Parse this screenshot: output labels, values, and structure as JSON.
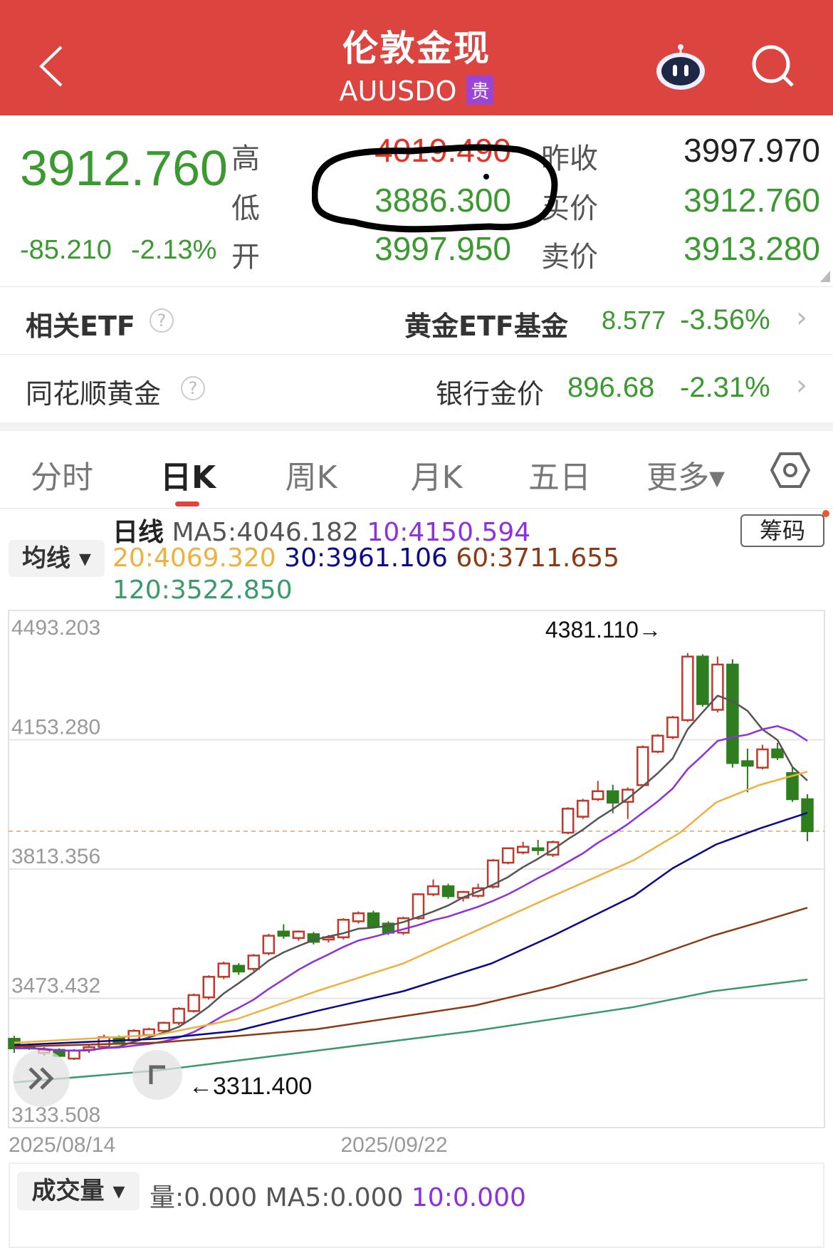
{
  "header": {
    "title": "伦敦金现",
    "symbol": "AUUSDO",
    "badge": "贵",
    "back_icon": "chevron-left-icon",
    "assistant_icon": "robot-icon",
    "search_icon": "search-icon"
  },
  "quote": {
    "price": "3912.760",
    "change": "-85.210",
    "change_pct": "-2.13%",
    "high_label": "高",
    "high": "4019.490",
    "low_label": "低",
    "low": "3886.300",
    "open_label": "开",
    "open": "3997.950",
    "prev_close_label": "昨收",
    "prev_close": "3997.970",
    "bid_label": "买价",
    "bid": "3912.760",
    "ask_label": "卖价",
    "ask": "3913.280"
  },
  "colors": {
    "header": "#dc4440",
    "up": "#e03427",
    "down": "#3a9a30",
    "ma5": "#555555",
    "ma10": "#8e2fe0",
    "ma20": "#f0b040",
    "ma30": "#0a0a8a",
    "ma60": "#8b3a15",
    "ma120": "#3a9a6a"
  },
  "related": [
    {
      "label": "相关ETF",
      "name": "黄金ETF基金",
      "price": "8.577",
      "pct": "-3.56%"
    },
    {
      "label": "同花顺黄金",
      "name": "银行金价",
      "price": "896.68",
      "pct": "-2.31%"
    }
  ],
  "tabs": [
    {
      "label": "分时"
    },
    {
      "label": "日K",
      "active": true
    },
    {
      "label": "周K"
    },
    {
      "label": "月K"
    },
    {
      "label": "五日"
    },
    {
      "label": "更多▾"
    }
  ],
  "settings_icon": "hexagon-gear-icon",
  "legend": {
    "title": "日线",
    "ma5": "MA5:4046.182",
    "ma10": "10:4150.594",
    "ma20": "20:4069.320",
    "ma30": "30:3961.106",
    "ma60": "60:3711.655",
    "ma120": "120:3522.850",
    "ma_button": "均线 ▾",
    "chips_button": "筹码"
  },
  "chart_data": {
    "type": "candlestick",
    "yticks": [
      "4493.203",
      "4153.280",
      "3813.356",
      "3473.432",
      "3133.508"
    ],
    "ylim": [
      3133.508,
      4493.203
    ],
    "x_labels": [
      {
        "candle": 0,
        "label": "2025/08/14"
      },
      {
        "candle": 26,
        "label": "2025/09/22"
      }
    ],
    "max_label": "4381.110→",
    "min_label": "←3311.400",
    "current_price": 3912.76,
    "candles_ohlc": [
      [
        3367,
        3375,
        3330,
        3342
      ],
      [
        3350,
        3355,
        3338,
        3342
      ],
      [
        3330,
        3345,
        3322,
        3338
      ],
      [
        3338,
        3342,
        3318,
        3322
      ],
      [
        3315,
        3340,
        3311.4,
        3336
      ],
      [
        3338,
        3352,
        3330,
        3345
      ],
      [
        3346,
        3378,
        3340,
        3371
      ],
      [
        3371,
        3376,
        3355,
        3358
      ],
      [
        3363,
        3392,
        3358,
        3388
      ],
      [
        3377,
        3396,
        3372,
        3392
      ],
      [
        3388,
        3412,
        3383,
        3409
      ],
      [
        3409,
        3450,
        3403,
        3446
      ],
      [
        3440,
        3486,
        3436,
        3482
      ],
      [
        3476,
        3534,
        3470,
        3530
      ],
      [
        3530,
        3570,
        3524,
        3565
      ],
      [
        3559,
        3566,
        3535,
        3544
      ],
      [
        3551,
        3590,
        3545,
        3586
      ],
      [
        3592,
        3643,
        3587,
        3638
      ],
      [
        3649,
        3668,
        3630,
        3638
      ],
      [
        3632,
        3652,
        3625,
        3649
      ],
      [
        3642,
        3648,
        3615,
        3622
      ],
      [
        3628,
        3640,
        3620,
        3634
      ],
      [
        3634,
        3684,
        3628,
        3680
      ],
      [
        3676,
        3702,
        3670,
        3697
      ],
      [
        3697,
        3704,
        3660,
        3663
      ],
      [
        3670,
        3676,
        3640,
        3646
      ],
      [
        3646,
        3688,
        3640,
        3684
      ],
      [
        3684,
        3750,
        3680,
        3747
      ],
      [
        3747,
        3786,
        3742,
        3768
      ],
      [
        3768,
        3775,
        3735,
        3742
      ],
      [
        3738,
        3756,
        3728,
        3753
      ],
      [
        3743,
        3775,
        3738,
        3763
      ],
      [
        3767,
        3840,
        3762,
        3836
      ],
      [
        3830,
        3870,
        3826,
        3868
      ],
      [
        3857,
        3885,
        3852,
        3872
      ],
      [
        3868,
        3890,
        3850,
        3863
      ],
      [
        3851,
        3888,
        3845,
        3884
      ],
      [
        3909,
        3976,
        3905,
        3972
      ],
      [
        3951,
        3998,
        3945,
        3993
      ],
      [
        3997,
        4045,
        3992,
        4018
      ],
      [
        4018,
        4035,
        3960,
        3988
      ],
      [
        3990,
        4028,
        3945,
        4022
      ],
      [
        4034,
        4138,
        4030,
        4134
      ],
      [
        4122,
        4168,
        4118,
        4164
      ],
      [
        4160,
        4216,
        4155,
        4212
      ],
      [
        4205,
        4381.11,
        4200,
        4372
      ],
      [
        4372,
        4378,
        4240,
        4247
      ],
      [
        4232,
        4372,
        4225,
        4351
      ],
      [
        4351,
        4365,
        4080,
        4092
      ],
      [
        4097,
        4130,
        4015,
        4085
      ],
      [
        4080,
        4140,
        4075,
        4128
      ],
      [
        4128,
        4145,
        4100,
        4107
      ],
      [
        4066,
        4080,
        3990,
        3997
      ],
      [
        3997,
        4010,
        3886.3,
        3912.76
      ]
    ],
    "ma_series": {
      "ma20": [
        [
          0,
          3356.7
        ],
        [
          9.6,
          3377.5
        ],
        [
          14.9,
          3419.2
        ],
        [
          20.2,
          3492.2
        ],
        [
          26,
          3565.2
        ],
        [
          31.9,
          3669.5
        ],
        [
          36,
          3742.5
        ],
        [
          41.4,
          3836.3
        ],
        [
          44.5,
          3909.3
        ],
        [
          46.9,
          3988.5
        ],
        [
          49.8,
          4034.4
        ],
        [
          53,
          4069.3
        ]
      ],
      "ma30": [
        [
          0,
          3350.4
        ],
        [
          9.6,
          3367.1
        ],
        [
          14.9,
          3388.0
        ],
        [
          20.2,
          3440.1
        ],
        [
          26,
          3492.2
        ],
        [
          31.9,
          3565.2
        ],
        [
          36,
          3638.2
        ],
        [
          41.4,
          3742.5
        ],
        [
          44,
          3815.4
        ],
        [
          46.9,
          3878.0
        ],
        [
          49.8,
          3919.7
        ],
        [
          53,
          3961.1
        ]
      ],
      "ma60": [
        [
          0,
          3346.2
        ],
        [
          9.6,
          3356.7
        ],
        [
          20.2,
          3392.1
        ],
        [
          30.8,
          3454.7
        ],
        [
          36,
          3502.6
        ],
        [
          41.4,
          3565.2
        ],
        [
          46.7,
          3638.2
        ],
        [
          49.8,
          3673.6
        ],
        [
          53,
          3711.7
        ]
      ],
      "ma120": [
        [
          0,
          3252.4
        ],
        [
          9.6,
          3283.7
        ],
        [
          20.2,
          3335.8
        ],
        [
          30.8,
          3388.0
        ],
        [
          41.4,
          3450.5
        ],
        [
          46.7,
          3492.2
        ],
        [
          53,
          3522.9
        ]
      ]
    }
  },
  "volume": {
    "button": "成交量 ▾",
    "vol": "量:0.000",
    "ma5": "MA5:0.000",
    "ma10": "10:0.000"
  }
}
